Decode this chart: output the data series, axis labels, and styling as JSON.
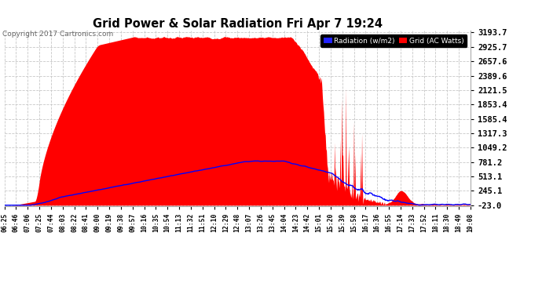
{
  "title": "Grid Power & Solar Radiation Fri Apr 7 19:24",
  "copyright": "Copyright 2017 Cartronics.com",
  "legend_radiation": "Radiation (w/m2)",
  "legend_grid": "Grid (AC Watts)",
  "yticks": [
    3193.7,
    2925.7,
    2657.6,
    2389.6,
    2121.5,
    1853.4,
    1585.4,
    1317.3,
    1049.2,
    781.2,
    513.1,
    245.1,
    -23.0
  ],
  "ymin": -23.0,
  "ymax": 3193.7,
  "background_color": "#ffffff",
  "plot_bg_color": "#ffffff",
  "grid_color": "#c8c8c8",
  "fill_color": "#ff0000",
  "line_color": "#0000ff",
  "title_color": "#000000",
  "xtick_labels": [
    "06:25",
    "06:46",
    "07:06",
    "07:25",
    "07:44",
    "08:03",
    "08:22",
    "08:41",
    "09:00",
    "09:19",
    "09:38",
    "09:57",
    "10:16",
    "10:35",
    "10:54",
    "11:13",
    "11:32",
    "11:51",
    "12:10",
    "12:29",
    "12:48",
    "13:07",
    "13:26",
    "13:45",
    "14:04",
    "14:23",
    "14:42",
    "15:01",
    "15:20",
    "15:39",
    "15:58",
    "16:17",
    "16:36",
    "16:55",
    "17:14",
    "17:33",
    "17:52",
    "18:11",
    "18:30",
    "18:49",
    "19:08"
  ],
  "n_points": 820
}
